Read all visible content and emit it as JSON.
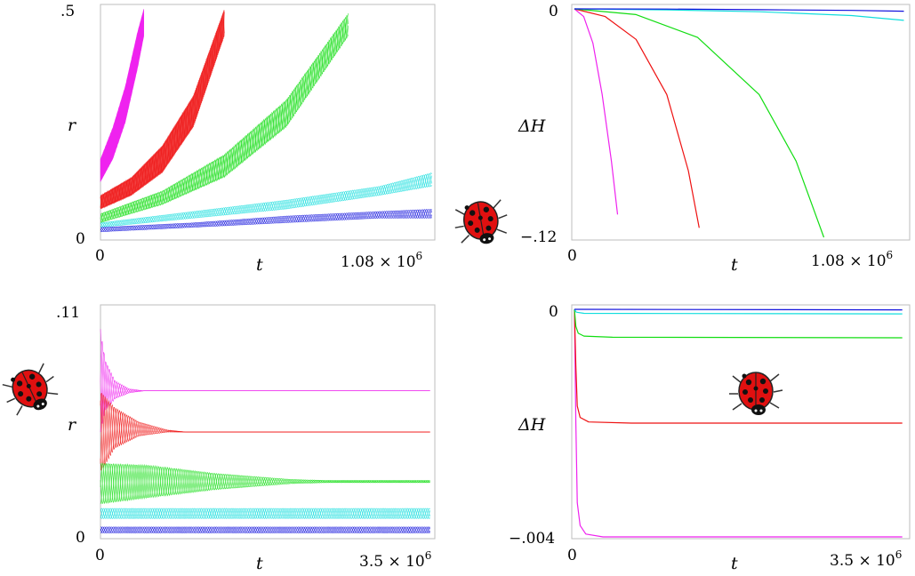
{
  "colors": {
    "magenta": "#ee22ee",
    "red": "#ee1111",
    "green": "#11dd11",
    "cyan": "#11dddd",
    "blue": "#1111dd"
  },
  "icons": [
    "ladybug-icon"
  ],
  "chart_data": [
    {
      "type": "line",
      "xlabel": "t",
      "ylabel": "r",
      "xlim": [
        0,
        1080000
      ],
      "ylim": [
        0,
        0.5
      ],
      "ytick_labels": [
        ".5",
        "0"
      ],
      "xtick_labels": [
        "0",
        "1.08 × 10^6"
      ],
      "x_tick_start": "0",
      "x_tick_end_mantissa": "1.08 × 10",
      "x_tick_end_exp": "6",
      "series": [
        {
          "color": "magenta",
          "x": [
            0,
            40000,
            80000,
            120000,
            140000
          ],
          "lower": [
            0.12,
            0.17,
            0.25,
            0.37,
            0.44
          ],
          "upper": [
            0.17,
            0.24,
            0.33,
            0.45,
            0.5
          ]
        },
        {
          "color": "red",
          "x": [
            0,
            100000,
            200000,
            300000,
            400000
          ],
          "lower": [
            0.06,
            0.09,
            0.14,
            0.24,
            0.44
          ],
          "upper": [
            0.09,
            0.13,
            0.2,
            0.31,
            0.5
          ]
        },
        {
          "color": "green",
          "x": [
            0,
            200000,
            400000,
            600000,
            800000
          ],
          "lower": [
            0.03,
            0.07,
            0.13,
            0.24,
            0.44
          ],
          "upper": [
            0.05,
            0.1,
            0.18,
            0.3,
            0.49
          ]
        },
        {
          "color": "cyan",
          "x": [
            0,
            300000,
            600000,
            900000,
            1070000
          ],
          "lower": [
            0.02,
            0.04,
            0.06,
            0.09,
            0.11
          ],
          "upper": [
            0.03,
            0.055,
            0.08,
            0.11,
            0.14
          ]
        },
        {
          "color": "blue",
          "x": [
            0,
            300000,
            600000,
            900000,
            1070000
          ],
          "lower": [
            0.01,
            0.02,
            0.03,
            0.04,
            0.04
          ],
          "upper": [
            0.02,
            0.03,
            0.045,
            0.055,
            0.06
          ]
        }
      ]
    },
    {
      "type": "line",
      "xlabel": "t",
      "ylabel": "ΔH",
      "xlim": [
        0,
        1080000
      ],
      "ylim": [
        -0.12,
        0
      ],
      "ytick_labels": [
        "0",
        "−.12"
      ],
      "xtick_labels": [
        "0",
        "1.08 × 10^6"
      ],
      "x_tick_start": "0",
      "x_tick_end_mantissa": "1.08 × 10",
      "x_tick_end_exp": "6",
      "series": [
        {
          "color": "magenta",
          "x": [
            0,
            30000,
            60000,
            90000,
            120000,
            140000
          ],
          "y": [
            0,
            -0.004,
            -0.018,
            -0.045,
            -0.08,
            -0.108
          ]
        },
        {
          "color": "red",
          "x": [
            0,
            100000,
            200000,
            300000,
            370000,
            405000
          ],
          "y": [
            0,
            -0.004,
            -0.016,
            -0.045,
            -0.085,
            -0.115
          ]
        },
        {
          "color": "green",
          "x": [
            0,
            200000,
            400000,
            600000,
            720000,
            810000
          ],
          "y": [
            0,
            -0.003,
            -0.015,
            -0.045,
            -0.08,
            -0.12
          ]
        },
        {
          "color": "cyan",
          "x": [
            0,
            300000,
            600000,
            900000,
            1070000
          ],
          "y": [
            0,
            -0.0005,
            -0.0015,
            -0.0035,
            -0.006
          ]
        },
        {
          "color": "blue",
          "x": [
            0,
            300000,
            600000,
            900000,
            1070000
          ],
          "y": [
            0,
            -0.0001,
            -0.0004,
            -0.0008,
            -0.0012
          ]
        }
      ]
    },
    {
      "type": "line",
      "xlabel": "t",
      "ylabel": "r",
      "xlim": [
        0,
        3500000
      ],
      "ylim": [
        0,
        0.11
      ],
      "ytick_labels": [
        ".11",
        "0"
      ],
      "xtick_labels": [
        "0",
        "3.5 × 10^6"
      ],
      "x_tick_start": "0",
      "x_tick_end_mantissa": "3.5 × 10",
      "x_tick_end_exp": "6",
      "series": [
        {
          "color": "magenta",
          "x": [
            0,
            50000,
            150000,
            300000,
            450000,
            3450000
          ],
          "lower": [
            0.05,
            0.06,
            0.066,
            0.069,
            0.07,
            0.07
          ],
          "upper": [
            0.1,
            0.085,
            0.075,
            0.071,
            0.07,
            0.07
          ]
        },
        {
          "color": "red",
          "x": [
            0,
            150000,
            400000,
            700000,
            900000,
            3450000
          ],
          "lower": [
            0.03,
            0.042,
            0.048,
            0.05,
            0.05,
            0.05
          ],
          "upper": [
            0.07,
            0.062,
            0.055,
            0.051,
            0.05,
            0.05
          ]
        },
        {
          "color": "green",
          "x": [
            0,
            500000,
            1200000,
            2000000,
            2400000,
            3450000
          ],
          "lower": [
            0.015,
            0.018,
            0.022,
            0.025,
            0.0255,
            0.0255
          ],
          "upper": [
            0.035,
            0.034,
            0.03,
            0.027,
            0.0265,
            0.0265
          ]
        },
        {
          "color": "cyan",
          "x": [
            0,
            1000000,
            2000000,
            3450000
          ],
          "lower": [
            0.008,
            0.008,
            0.008,
            0.008
          ],
          "upper": [
            0.013,
            0.013,
            0.013,
            0.013
          ]
        },
        {
          "color": "blue",
          "x": [
            0,
            1000000,
            2000000,
            3450000
          ],
          "lower": [
            0.001,
            0.001,
            0.001,
            0.001
          ],
          "upper": [
            0.004,
            0.004,
            0.004,
            0.004
          ]
        }
      ]
    },
    {
      "type": "line",
      "xlabel": "t",
      "ylabel": "ΔH",
      "xlim": [
        0,
        3500000
      ],
      "ylim": [
        -0.004,
        0
      ],
      "ytick_labels": [
        "0",
        "−.004"
      ],
      "xtick_labels": [
        "0",
        "3.5 × 10^6"
      ],
      "x_tick_start": "0",
      "x_tick_end_mantissa": "3.5 × 10",
      "x_tick_end_exp": "6",
      "series": [
        {
          "color": "magenta",
          "x": [
            0,
            15000,
            30000,
            60000,
            120000,
            300000,
            3450000
          ],
          "y": [
            0,
            -0.002,
            -0.0034,
            -0.0038,
            -0.00395,
            -0.004,
            -0.004
          ]
        },
        {
          "color": "red",
          "x": [
            0,
            15000,
            30000,
            60000,
            150000,
            600000,
            3450000
          ],
          "y": [
            0,
            -0.001,
            -0.0017,
            -0.0019,
            -0.00198,
            -0.002,
            -0.002
          ]
        },
        {
          "color": "green",
          "x": [
            0,
            15000,
            40000,
            100000,
            400000,
            3450000
          ],
          "y": [
            0,
            -0.0003,
            -0.00042,
            -0.00047,
            -0.00049,
            -0.0005
          ]
        },
        {
          "color": "cyan",
          "x": [
            0,
            20000,
            100000,
            3450000
          ],
          "y": [
            0,
            -5e-05,
            -7e-05,
            -8e-05
          ]
        },
        {
          "color": "blue",
          "x": [
            0,
            3450000
          ],
          "y": [
            0,
            -1e-05
          ]
        }
      ]
    }
  ]
}
